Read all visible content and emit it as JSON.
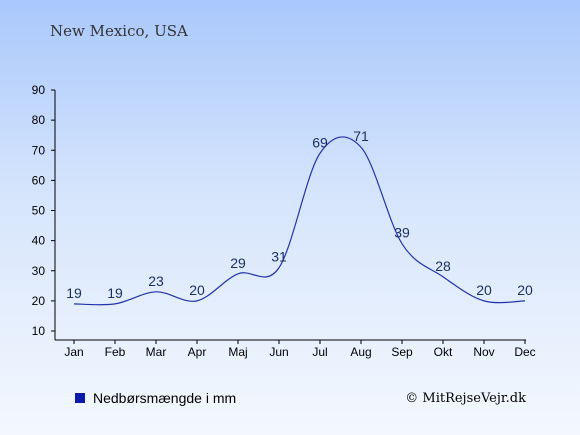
{
  "chart_data": {
    "type": "line",
    "title": "New Mexico, USA",
    "categories": [
      "Jan",
      "Feb",
      "Mar",
      "Apr",
      "Maj",
      "Jun",
      "Jul",
      "Aug",
      "Sep",
      "Okt",
      "Nov",
      "Dec"
    ],
    "series": [
      {
        "name": "Nedbørsmængde i mm",
        "values": [
          19,
          19,
          23,
          20,
          29,
          31,
          69,
          71,
          39,
          28,
          20,
          20
        ]
      }
    ],
    "ylim": [
      10,
      90
    ],
    "yticks": [
      10,
      20,
      30,
      40,
      50,
      60,
      70,
      80,
      90
    ],
    "grid": false,
    "legend": "bottom-left",
    "colors": {
      "line": "#2233aa",
      "legend_marker": "#0a1aa8",
      "label": "#1a2f5c"
    }
  },
  "credit": "© MitRejseVejr.dk"
}
